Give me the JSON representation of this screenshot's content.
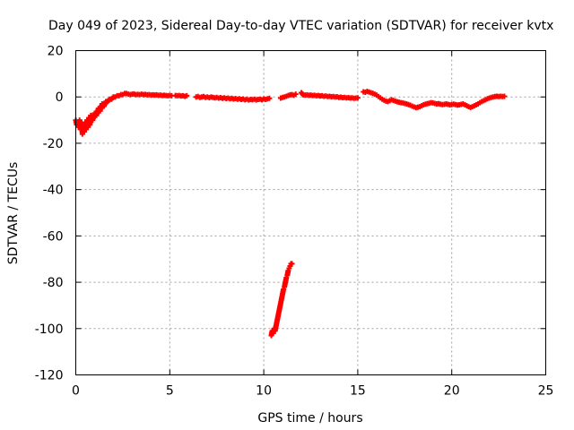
{
  "chart_data": {
    "type": "scatter",
    "title": "Day 049 of 2023, Sidereal Day-to-day VTEC variation (SDTVAR) for receiver kvtx",
    "xlabel": "GPS time / hours",
    "ylabel": "SDTVAR / TECUs",
    "xlim": [
      0,
      25
    ],
    "ylim": [
      -120,
      20
    ],
    "xticks": [
      0,
      5,
      10,
      15,
      20,
      25
    ],
    "yticks": [
      20,
      0,
      -20,
      -40,
      -60,
      -80,
      -100,
      -120
    ],
    "grid": true,
    "marker": "plus",
    "series": [
      {
        "color": "#ff0000",
        "segments": [
          [
            [
              0.0,
              -10
            ],
            [
              0.05,
              -12
            ],
            [
              0.1,
              -11
            ],
            [
              0.15,
              -13
            ],
            [
              0.2,
              -10
            ],
            [
              0.25,
              -14
            ],
            [
              0.3,
              -11
            ],
            [
              0.35,
              -16
            ],
            [
              0.4,
              -12
            ],
            [
              0.45,
              -15
            ],
            [
              0.5,
              -11
            ],
            [
              0.55,
              -14
            ],
            [
              0.6,
              -10
            ],
            [
              0.65,
              -13
            ],
            [
              0.7,
              -9
            ],
            [
              0.75,
              -12
            ],
            [
              0.8,
              -8
            ],
            [
              0.9,
              -10
            ],
            [
              1.0,
              -7
            ],
            [
              1.1,
              -8
            ],
            [
              1.2,
              -5
            ],
            [
              1.3,
              -6
            ],
            [
              1.4,
              -3
            ],
            [
              1.5,
              -4
            ],
            [
              1.6,
              -2
            ],
            [
              1.7,
              -2
            ],
            [
              1.8,
              -1
            ],
            [
              1.9,
              -1
            ],
            [
              2.0,
              0
            ],
            [
              2.1,
              0
            ],
            [
              2.2,
              0.5
            ],
            [
              2.3,
              0.5
            ],
            [
              2.4,
              1
            ],
            [
              2.5,
              1
            ],
            [
              2.6,
              1.5
            ],
            [
              2.7,
              1.5
            ],
            [
              2.8,
              1.2
            ],
            [
              2.9,
              1
            ],
            [
              3.0,
              1.2
            ],
            [
              3.1,
              1.3
            ],
            [
              3.2,
              1
            ],
            [
              3.3,
              1.1
            ],
            [
              3.4,
              1
            ],
            [
              3.5,
              1.2
            ],
            [
              3.6,
              1
            ],
            [
              3.7,
              1.1
            ],
            [
              3.8,
              0.9
            ],
            [
              3.9,
              1
            ],
            [
              4.0,
              0.8
            ],
            [
              4.1,
              0.9
            ],
            [
              4.2,
              0.8
            ],
            [
              4.3,
              0.9
            ],
            [
              4.4,
              0.7
            ],
            [
              4.5,
              0.8
            ],
            [
              4.6,
              0.6
            ],
            [
              4.7,
              0.7
            ],
            [
              4.8,
              0.6
            ],
            [
              4.9,
              0.5
            ],
            [
              5.0,
              0.6
            ],
            [
              5.1,
              0.5
            ]
          ],
          [
            [
              5.3,
              0.6
            ],
            [
              5.4,
              0.5
            ],
            [
              5.5,
              0.6
            ],
            [
              5.6,
              0.4
            ],
            [
              5.7,
              0.5
            ],
            [
              5.8,
              0.3
            ],
            [
              5.9,
              0.5
            ]
          ],
          [
            [
              6.4,
              0
            ],
            [
              6.5,
              0.2
            ],
            [
              6.6,
              -0.2
            ],
            [
              6.7,
              0
            ],
            [
              6.8,
              0.2
            ],
            [
              6.9,
              -0.2
            ],
            [
              7.0,
              0
            ],
            [
              7.1,
              -0.3
            ],
            [
              7.2,
              0
            ],
            [
              7.3,
              -0.2
            ],
            [
              7.4,
              -0.4
            ],
            [
              7.5,
              -0.2
            ],
            [
              7.6,
              -0.5
            ],
            [
              7.7,
              -0.3
            ],
            [
              7.8,
              -0.6
            ],
            [
              7.9,
              -0.4
            ],
            [
              8.0,
              -0.7
            ],
            [
              8.1,
              -0.5
            ],
            [
              8.2,
              -0.8
            ],
            [
              8.3,
              -0.6
            ],
            [
              8.4,
              -0.9
            ],
            [
              8.5,
              -0.7
            ],
            [
              8.6,
              -1
            ],
            [
              8.7,
              -0.8
            ],
            [
              8.8,
              -1.1
            ],
            [
              8.9,
              -0.9
            ],
            [
              9.0,
              -1.2
            ],
            [
              9.1,
              -1
            ],
            [
              9.2,
              -1.3
            ],
            [
              9.3,
              -1.1
            ],
            [
              9.4,
              -1.2
            ],
            [
              9.5,
              -1
            ],
            [
              9.6,
              -1.3
            ],
            [
              9.7,
              -1.1
            ],
            [
              9.8,
              -1
            ],
            [
              9.9,
              -1.2
            ],
            [
              10.0,
              -0.9
            ],
            [
              10.1,
              -1.1
            ],
            [
              10.2,
              -0.8
            ],
            [
              10.3,
              -0.6
            ]
          ],
          [
            [
              10.9,
              -0.5
            ],
            [
              11.0,
              -0.2
            ],
            [
              11.1,
              0
            ],
            [
              11.2,
              0.3
            ],
            [
              11.3,
              0.6
            ],
            [
              11.4,
              0.9
            ],
            [
              11.5,
              1
            ],
            [
              11.6,
              0.7
            ],
            [
              11.7,
              1.2
            ]
          ],
          [
            [
              12.0,
              1.8
            ],
            [
              12.1,
              0.9
            ],
            [
              12.2,
              0.8
            ],
            [
              12.3,
              0.9
            ],
            [
              12.4,
              0.7
            ],
            [
              12.5,
              0.8
            ],
            [
              12.6,
              0.6
            ],
            [
              12.7,
              0.7
            ],
            [
              12.8,
              0.5
            ],
            [
              12.9,
              0.6
            ],
            [
              13.0,
              0.4
            ],
            [
              13.1,
              0.5
            ],
            [
              13.2,
              0.3
            ],
            [
              13.3,
              0.4
            ],
            [
              13.4,
              0.2
            ],
            [
              13.5,
              0.3
            ],
            [
              13.6,
              0.1
            ],
            [
              13.7,
              0.2
            ],
            [
              13.8,
              0
            ],
            [
              13.9,
              0.1
            ],
            [
              14.0,
              -0.2
            ],
            [
              14.1,
              -0.1
            ],
            [
              14.2,
              -0.3
            ],
            [
              14.3,
              -0.2
            ],
            [
              14.4,
              -0.4
            ],
            [
              14.5,
              -0.3
            ],
            [
              14.6,
              -0.5
            ],
            [
              14.7,
              -0.4
            ],
            [
              14.8,
              -0.6
            ],
            [
              14.9,
              -0.5
            ],
            [
              15.0,
              -0.4
            ]
          ],
          [
            [
              15.3,
              2.2
            ],
            [
              15.4,
              2
            ],
            [
              15.5,
              2.4
            ],
            [
              15.6,
              2.1
            ],
            [
              15.7,
              1.8
            ],
            [
              15.8,
              1.6
            ],
            [
              15.9,
              1.2
            ],
            [
              16.0,
              0.8
            ],
            [
              16.1,
              0.2
            ],
            [
              16.2,
              -0.4
            ],
            [
              16.3,
              -1
            ],
            [
              16.4,
              -1.4
            ],
            [
              16.5,
              -1.8
            ],
            [
              16.6,
              -2
            ],
            [
              16.7,
              -1.6
            ],
            [
              16.8,
              -1.2
            ],
            [
              16.9,
              -1.5
            ],
            [
              17.0,
              -1.8
            ],
            [
              17.1,
              -2.1
            ],
            [
              17.2,
              -2.3
            ],
            [
              17.3,
              -2.5
            ],
            [
              17.4,
              -2.6
            ],
            [
              17.5,
              -2.8
            ],
            [
              17.6,
              -3
            ],
            [
              17.7,
              -3.3
            ],
            [
              17.8,
              -3.6
            ],
            [
              17.9,
              -4
            ],
            [
              18.0,
              -4.3
            ],
            [
              18.1,
              -4.6
            ],
            [
              18.2,
              -4.4
            ],
            [
              18.3,
              -4.2
            ],
            [
              18.4,
              -3.8
            ],
            [
              18.5,
              -3.4
            ],
            [
              18.6,
              -3.1
            ],
            [
              18.7,
              -2.9
            ],
            [
              18.8,
              -2.7
            ],
            [
              18.9,
              -2.5
            ],
            [
              19.0,
              -2.6
            ],
            [
              19.1,
              -2.8
            ],
            [
              19.2,
              -3
            ],
            [
              19.3,
              -2.9
            ],
            [
              19.4,
              -3.1
            ],
            [
              19.5,
              -3.3
            ],
            [
              19.6,
              -3.2
            ],
            [
              19.7,
              -3
            ],
            [
              19.8,
              -3.2
            ],
            [
              19.9,
              -3.4
            ],
            [
              20.0,
              -3.3
            ],
            [
              20.1,
              -3.1
            ],
            [
              20.2,
              -3.3
            ],
            [
              20.3,
              -3.5
            ],
            [
              20.4,
              -3.4
            ],
            [
              20.5,
              -3.2
            ],
            [
              20.6,
              -3
            ],
            [
              20.7,
              -3.4
            ],
            [
              20.8,
              -3.8
            ],
            [
              20.9,
              -4.2
            ],
            [
              21.0,
              -4.5
            ],
            [
              21.1,
              -4.2
            ],
            [
              21.2,
              -3.8
            ],
            [
              21.3,
              -3.4
            ],
            [
              21.4,
              -3
            ],
            [
              21.5,
              -2.5
            ],
            [
              21.6,
              -2
            ],
            [
              21.7,
              -1.6
            ],
            [
              21.8,
              -1.2
            ],
            [
              21.9,
              -0.8
            ],
            [
              22.0,
              -0.5
            ],
            [
              22.1,
              -0.2
            ],
            [
              22.2,
              0
            ],
            [
              22.3,
              0.2
            ],
            [
              22.4,
              0.3
            ],
            [
              22.5,
              0.2
            ],
            [
              22.6,
              0.3
            ],
            [
              22.7,
              0.2
            ],
            [
              22.8,
              0.3
            ]
          ],
          [
            [
              10.4,
              -103
            ],
            [
              10.45,
              -101
            ],
            [
              10.5,
              -102
            ],
            [
              10.55,
              -100
            ],
            [
              10.6,
              -101
            ],
            [
              10.65,
              -99
            ],
            [
              10.7,
              -97
            ],
            [
              10.75,
              -95
            ],
            [
              10.8,
              -93
            ],
            [
              10.85,
              -91
            ],
            [
              10.9,
              -89
            ],
            [
              10.95,
              -87
            ],
            [
              11.0,
              -85
            ],
            [
              11.05,
              -83
            ],
            [
              11.1,
              -82
            ],
            [
              11.15,
              -80
            ],
            [
              11.2,
              -78
            ],
            [
              11.25,
              -77
            ],
            [
              11.3,
              -75
            ],
            [
              11.35,
              -74
            ],
            [
              11.4,
              -73
            ],
            [
              11.45,
              -72
            ],
            [
              11.5,
              -72
            ]
          ]
        ]
      }
    ]
  }
}
